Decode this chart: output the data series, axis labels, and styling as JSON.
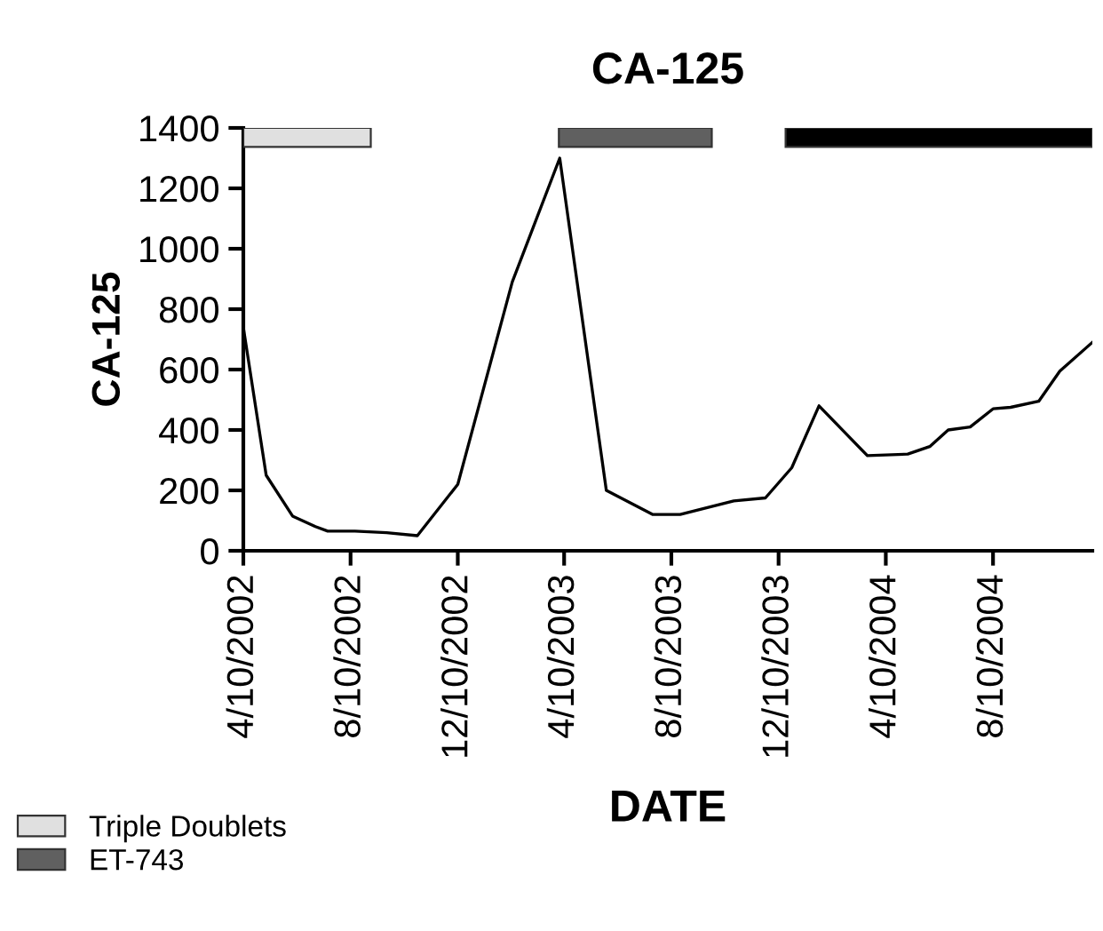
{
  "chart_data": {
    "type": "line",
    "title": "CA-125",
    "xlabel": "DATE",
    "ylabel": "CA-125",
    "x": [
      "2002-04-10",
      "2002-05-06",
      "2002-06-05",
      "2002-07-01",
      "2002-07-15",
      "2002-08-15",
      "2002-09-20",
      "2002-10-25",
      "2002-12-10",
      "2003-02-10",
      "2003-04-05",
      "2003-05-28",
      "2003-07-20",
      "2003-08-20",
      "2003-10-20",
      "2003-11-25",
      "2003-12-25",
      "2004-01-25",
      "2004-03-20",
      "2004-05-05",
      "2004-05-30",
      "2004-06-20",
      "2004-07-15",
      "2004-08-10",
      "2004-08-30",
      "2004-10-01",
      "2004-10-25",
      "2004-12-01"
    ],
    "series": [
      {
        "color": "#000000",
        "values": [
          740,
          250,
          115,
          80,
          65,
          65,
          60,
          50,
          220,
          890,
          1300,
          200,
          120,
          120,
          165,
          175,
          275,
          480,
          315,
          320,
          345,
          400,
          410,
          470,
          475,
          495,
          595,
          690
        ]
      }
    ],
    "xlim": [
      "2002-04-10",
      "2004-12-01"
    ],
    "xticks": [
      {
        "value": "2002-04-10",
        "label": "4/10/2002"
      },
      {
        "value": "2002-08-10",
        "label": "8/10/2002"
      },
      {
        "value": "2002-12-10",
        "label": "12/10/2002"
      },
      {
        "value": "2003-04-10",
        "label": "4/10/2003"
      },
      {
        "value": "2003-08-10",
        "label": "8/10/2003"
      },
      {
        "value": "2003-12-10",
        "label": "12/10/2003"
      },
      {
        "value": "2004-04-10",
        "label": "4/10/2004"
      },
      {
        "value": "2004-08-10",
        "label": "8/10/2004"
      }
    ],
    "ylim": [
      0,
      1400
    ],
    "yticks": [
      0,
      200,
      400,
      600,
      800,
      1000,
      1200,
      1400
    ],
    "bands": [
      {
        "axis": "x",
        "from": "2002-04-10",
        "to": "2002-09-02",
        "label": "Triple Doublets",
        "color": "#e0e0e0"
      },
      {
        "axis": "x",
        "from": "2003-04-04",
        "to": "2003-09-25",
        "label": "ET-743",
        "color": "#606060"
      },
      {
        "axis": "x",
        "from": "2003-12-18",
        "to": "2004-12-01",
        "color": "#000000"
      }
    ],
    "grid": false,
    "legend": "bottom left",
    "marker": "none",
    "line_style": "solid"
  }
}
